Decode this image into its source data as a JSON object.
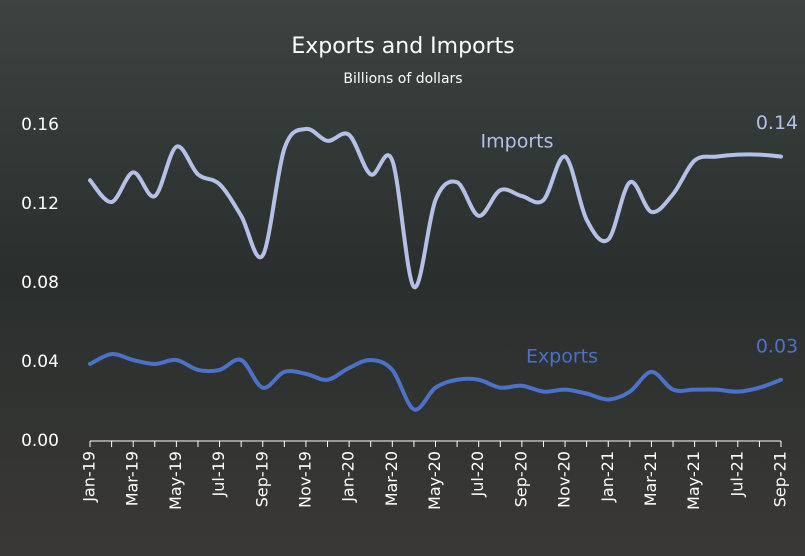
{
  "chart_data": {
    "type": "line",
    "title": "Exports and Imports",
    "subtitle": "Billions of dollars",
    "categories": [
      "Jan-19",
      null,
      "Mar-19",
      null,
      "May-19",
      null,
      "Jul-19",
      null,
      "Sep-19",
      null,
      "Nov-19",
      null,
      "Jan-20",
      null,
      "Mar-20",
      null,
      "May-20",
      null,
      "Jul-20",
      null,
      "Sep-20",
      null,
      "Nov-20",
      null,
      "Jan-21",
      null,
      "Mar-21",
      null,
      "May-21",
      null,
      "Jul-21",
      null,
      "Sep-21"
    ],
    "series": [
      {
        "name": "Imports",
        "color": "#b4c0e8",
        "values": [
          0.132,
          0.121,
          0.136,
          0.124,
          0.149,
          0.135,
          0.13,
          0.114,
          0.094,
          0.148,
          0.158,
          0.152,
          0.155,
          0.135,
          0.142,
          0.078,
          0.122,
          0.131,
          0.114,
          0.127,
          0.124,
          0.122,
          0.144,
          0.112,
          0.102,
          0.131,
          0.116,
          0.125,
          0.142,
          0.144,
          0.145,
          0.145,
          0.144
        ],
        "value_labels": [
          null,
          null,
          null,
          null,
          null,
          null,
          null,
          null,
          null,
          null,
          null,
          null,
          null,
          null,
          null,
          null,
          null,
          null,
          null,
          null,
          null,
          null,
          null,
          null,
          null,
          null,
          null,
          null,
          null,
          null,
          null,
          null,
          "0.14"
        ]
      },
      {
        "name": "Exports",
        "color": "#4a72c8",
        "values": [
          0.039,
          0.044,
          0.041,
          0.039,
          0.041,
          0.036,
          0.036,
          0.041,
          0.027,
          0.035,
          0.034,
          0.031,
          0.037,
          0.041,
          0.036,
          0.016,
          0.027,
          0.031,
          0.031,
          0.027,
          0.028,
          0.025,
          0.026,
          0.024,
          0.021,
          0.025,
          0.035,
          0.026,
          0.026,
          0.026,
          0.025,
          0.027,
          0.031
        ],
        "value_labels": [
          null,
          null,
          null,
          null,
          null,
          null,
          null,
          null,
          null,
          null,
          null,
          null,
          null,
          null,
          null,
          null,
          null,
          null,
          null,
          null,
          null,
          null,
          null,
          null,
          null,
          null,
          null,
          null,
          null,
          null,
          null,
          null,
          "0.03"
        ]
      }
    ],
    "ylim": [
      0,
      0.16
    ],
    "yticks": [
      {
        "value": 0,
        "label": "0.00"
      },
      0.04,
      0.08,
      0.12,
      0.16
    ]
  }
}
